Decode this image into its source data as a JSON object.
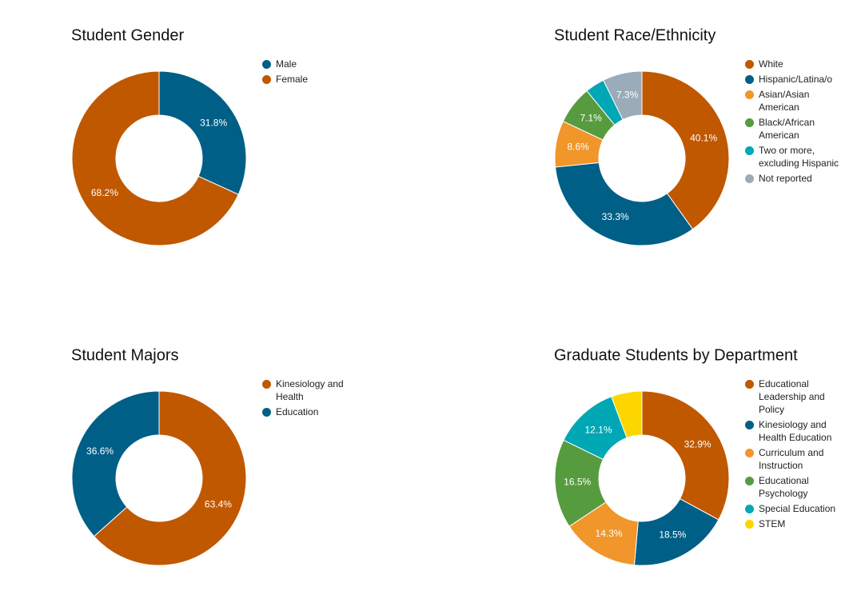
{
  "chart_data": [
    {
      "type": "donut",
      "title": "Student Gender",
      "legend": "right",
      "categories": [
        "Male",
        "Female"
      ],
      "values": [
        31.8,
        68.2
      ],
      "value_labels": [
        "31.8%",
        "68.2%"
      ],
      "colors": [
        "#005f87",
        "#c05800"
      ]
    },
    {
      "type": "donut",
      "title": "Student Race/Ethnicity",
      "legend": "right",
      "categories": [
        "White",
        "Hispanic/Latina/o",
        "Asian/Asian American",
        "Black/African American",
        "Two or more, excluding Hispanic",
        "Not reported"
      ],
      "values": [
        40.1,
        33.3,
        8.6,
        7.1,
        3.6,
        7.3
      ],
      "value_labels": [
        "40.1%",
        "33.3%",
        "8.6%",
        "7.1%",
        null,
        "7.3%"
      ],
      "colors": [
        "#c05800",
        "#005f87",
        "#f0962a",
        "#569c3e",
        "#00a7b5",
        "#9aabb9"
      ]
    },
    {
      "type": "donut",
      "title": "Student Majors",
      "legend": "right",
      "categories": [
        "Kinesiology and Health",
        "Education"
      ],
      "values": [
        63.4,
        36.6
      ],
      "value_labels": [
        "63.4%",
        "36.6%"
      ],
      "colors": [
        "#c05800",
        "#005f87"
      ]
    },
    {
      "type": "donut",
      "title": "Graduate Students by Department",
      "legend": "right",
      "categories": [
        "Educational Leadership and Policy",
        "Kinesiology and Health Education",
        "Curriculum and Instruction",
        "Educational Psychology",
        "Special Education",
        "STEM"
      ],
      "values": [
        32.9,
        18.5,
        14.3,
        16.5,
        12.1,
        5.7
      ],
      "value_labels": [
        "32.9%",
        "18.5%",
        "14.3%",
        "16.5%",
        "12.1%",
        null
      ],
      "colors": [
        "#c05800",
        "#005f87",
        "#f0962a",
        "#569c3e",
        "#00a7b5",
        "#fdd600"
      ]
    }
  ]
}
